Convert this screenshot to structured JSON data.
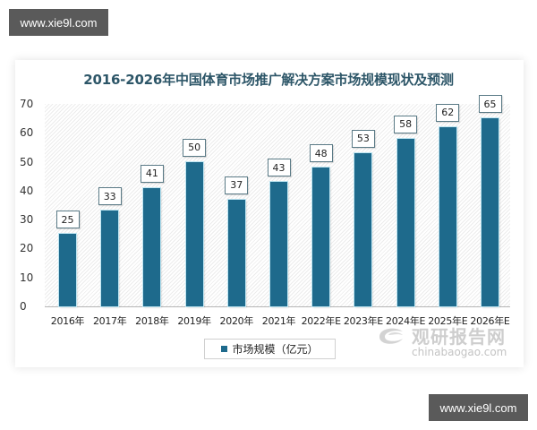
{
  "watermark": {
    "top_text": "www.xie9l.com",
    "bottom_text": "www.xie9l.com"
  },
  "chart_data": {
    "type": "bar",
    "title": "2016-2026年中国体育市场推广解决方案市场规模现状及预测",
    "categories": [
      "2016年",
      "2017年",
      "2018年",
      "2019年",
      "2020年",
      "2021年",
      "2022年E",
      "2023年E",
      "2024年E",
      "2025年E",
      "2026年E"
    ],
    "series": [
      {
        "name": "市场规模（亿元）",
        "values": [
          25,
          33,
          41,
          50,
          37,
          43,
          48,
          53,
          58,
          62,
          65
        ],
        "color": "#1e6a8c"
      }
    ],
    "xlabel": "",
    "ylabel": "",
    "ylim": [
      0,
      70
    ],
    "yticks": [
      "0",
      "10",
      "20",
      "30",
      "40",
      "50",
      "60",
      "70"
    ],
    "grid": false,
    "legend_position": "bottom-center",
    "data_labels": true
  },
  "legend": {
    "label": "市场规模（亿元）"
  },
  "source_brand": {
    "cn": "观研报告网",
    "en": "chinabaogao.com"
  }
}
